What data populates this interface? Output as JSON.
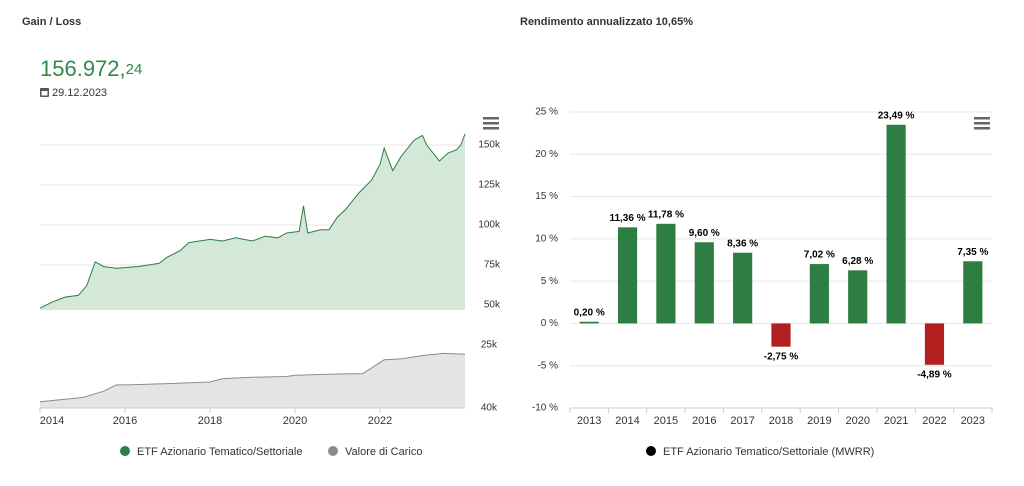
{
  "header": {
    "title": "Gain / Loss",
    "value_main": "156.972,",
    "value_decimals": "24",
    "date": "29.12.2023",
    "right_title": "Rendimento annualizzato 10,65%"
  },
  "chart_data": [
    {
      "type": "area",
      "x": [
        2014.0,
        2014.3,
        2014.6,
        2014.9,
        2015.1,
        2015.3,
        2015.5,
        2015.8,
        2016.3,
        2016.8,
        2017.0,
        2017.3,
        2017.5,
        2018.0,
        2018.3,
        2018.6,
        2019.0,
        2019.3,
        2019.6,
        2019.8,
        2020.1,
        2020.2,
        2020.3,
        2020.6,
        2020.8,
        2021.0,
        2021.2,
        2021.5,
        2021.8,
        2022.0,
        2022.1,
        2022.3,
        2022.5,
        2022.8,
        2023.0,
        2023.1,
        2023.4,
        2023.6,
        2023.8,
        2023.9,
        2024.0
      ],
      "series": [
        {
          "name": "ETF Azionario Tematico/Settoriale",
          "color": "#2e7d43",
          "fill": "#d3e8d8",
          "values": [
            48000,
            52000,
            55000,
            56000,
            62000,
            77000,
            74000,
            73000,
            74000,
            76000,
            80000,
            84000,
            89000,
            91000,
            90000,
            92000,
            90000,
            93000,
            92000,
            95000,
            96000,
            112000,
            95000,
            97000,
            97000,
            105000,
            110000,
            120000,
            128000,
            138000,
            148000,
            134000,
            143000,
            153000,
            156000,
            150000,
            140000,
            145000,
            147000,
            150000,
            157000
          ]
        }
      ],
      "xlim": [
        2014,
        2024
      ],
      "ylim": [
        46875,
        162500
      ],
      "yticks": [
        {
          "value": 50000,
          "label": "50k"
        },
        {
          "value": 75000,
          "label": "75k"
        },
        {
          "value": 100000,
          "label": "100k"
        },
        {
          "value": 125000,
          "label": "125k"
        },
        {
          "value": 150000,
          "label": "150k"
        }
      ],
      "grid": true
    },
    {
      "type": "area",
      "x": [
        2014.0,
        2015.0,
        2015.5,
        2015.8,
        2016.0,
        2017.0,
        2018.0,
        2018.3,
        2019.0,
        2019.8,
        2020.0,
        2021.0,
        2021.6,
        2022.1,
        2022.5,
        2023.0,
        2023.5,
        2024.0
      ],
      "series": [
        {
          "name": "Valore di Carico",
          "color": "#8c8c8c",
          "fill": "#e4e4e4",
          "values": [
            38500,
            37500,
            36000,
            34500,
            34500,
            34200,
            33800,
            33000,
            32700,
            32500,
            32200,
            31900,
            31800,
            28500,
            28300,
            27500,
            27000,
            27200
          ]
        }
      ],
      "xlim": [
        2014,
        2024
      ],
      "ylim": [
        40000,
        25000
      ],
      "yticks": [
        {
          "value": 25000,
          "label": "25k"
        },
        {
          "value": 40000,
          "label": "40k"
        }
      ],
      "xticks": [
        2014,
        2016,
        2018,
        2020,
        2022
      ]
    },
    {
      "type": "bar",
      "categories": [
        "2013",
        "2014",
        "2015",
        "2016",
        "2017",
        "2018",
        "2019",
        "2020",
        "2021",
        "2022",
        "2023"
      ],
      "values": [
        0.2,
        11.36,
        11.78,
        9.6,
        8.36,
        -2.75,
        7.02,
        6.28,
        23.49,
        -4.89,
        7.35
      ],
      "value_labels": [
        "0,20 %",
        "11,36 %",
        "11,78 %",
        "9,60 %",
        "8,36 %",
        "-2,75 %",
        "7,02 %",
        "6,28 %",
        "23,49 %",
        "-4,89 %",
        "7,35 %"
      ],
      "colors": [
        "#2e7d43",
        "#2e7d43",
        "#2e7d43",
        "#2e7d43",
        "#2e7d43",
        "#b21f1f",
        "#2e7d43",
        "#2e7d43",
        "#2e7d43",
        "#b21f1f",
        "#2e7d43"
      ],
      "legend": {
        "name": "ETF Azionario Tematico/Settoriale (MWRR)",
        "color": "#000000"
      },
      "ylim": [
        -10,
        25
      ],
      "yticks": [
        {
          "value": -10,
          "label": "-10 %"
        },
        {
          "value": -5,
          "label": "-5 %"
        },
        {
          "value": 0,
          "label": "0 %"
        },
        {
          "value": 5,
          "label": "5 %"
        },
        {
          "value": 10,
          "label": "10 %"
        },
        {
          "value": 15,
          "label": "15 %"
        },
        {
          "value": 20,
          "label": "20 %"
        },
        {
          "value": 25,
          "label": "25 %"
        }
      ],
      "grid": true
    }
  ]
}
